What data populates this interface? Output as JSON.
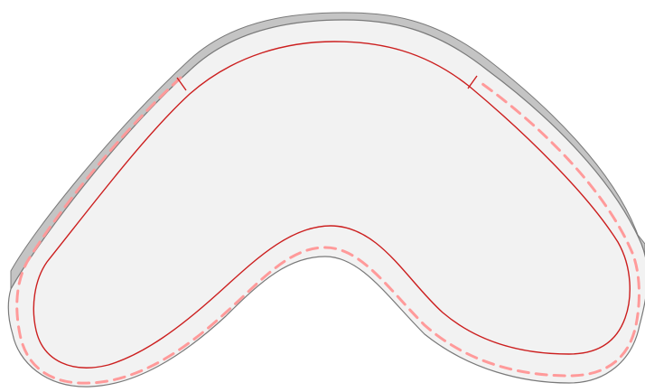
{
  "diagram": {
    "colors": {
      "background": "#ffffff",
      "shape_fill": "#f2f2f2",
      "shape_outline": "#7a7a7a",
      "edge_shade": "#c4c4c4",
      "inner_line": "#cc1f1f",
      "dashed_line": "#ff9a9a",
      "tick_marks": "#cc1f1f"
    }
  }
}
